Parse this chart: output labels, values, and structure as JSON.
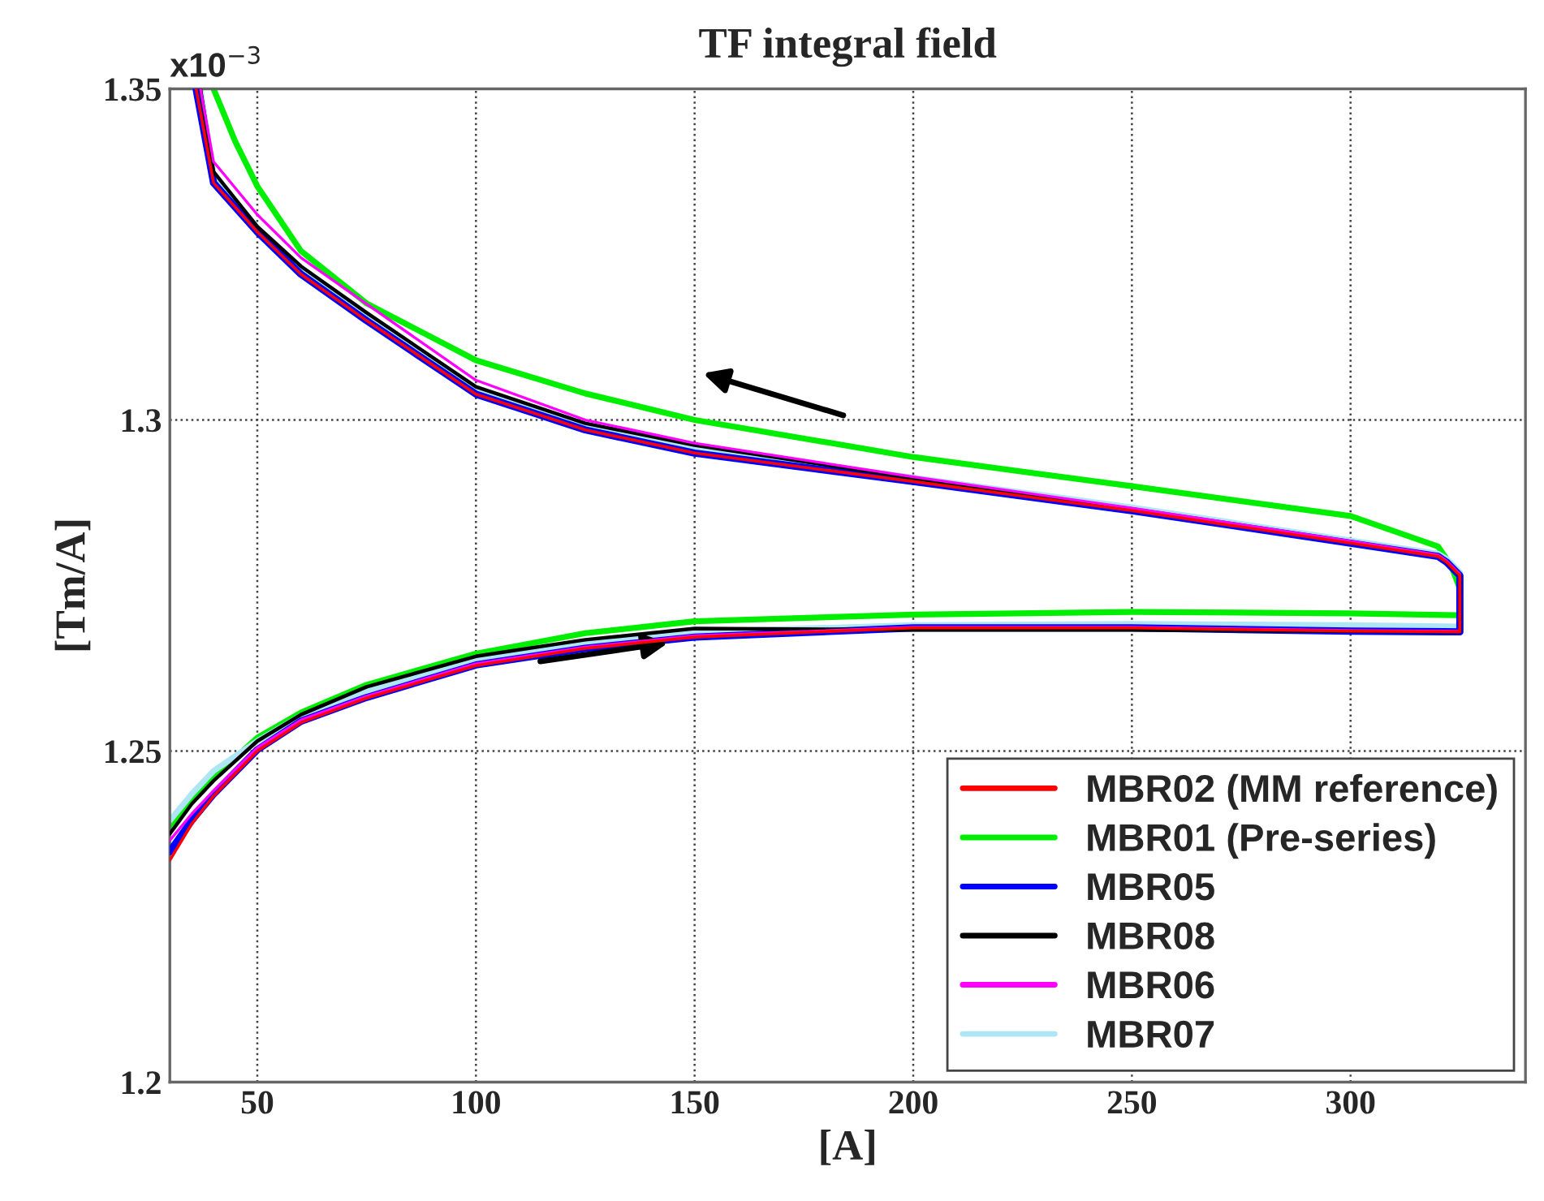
{
  "chart_data": {
    "type": "line",
    "title": "TF integral field",
    "xlabel": "[A]",
    "ylabel": "[Tm/A]",
    "annotations": [
      "x10$^{−3}$"
    ],
    "xlim": [
      30,
      340
    ],
    "xticks": [
      50,
      100,
      150,
      200,
      250,
      300
    ],
    "ylim": [
      1.2,
      1.35
    ],
    "yticks": [
      1.2,
      1.25,
      1.3,
      1.35
    ],
    "grid": true,
    "legend": "bottom right",
    "line_style": "solid",
    "marker": "none",
    "series": [
      {
        "name": "MBR02 (MM reference)",
        "color": "#ff0000",
        "x": [
          30,
          35,
          40,
          50,
          60,
          75,
          100,
          125,
          150,
          200,
          250,
          300,
          325,
          325,
          322,
          320,
          300,
          250,
          200,
          150,
          125,
          100,
          75,
          60,
          50,
          40,
          36
        ],
        "values": [
          1.2335,
          1.239,
          1.2432,
          1.25,
          1.2543,
          1.258,
          1.2629,
          1.2655,
          1.2672,
          1.2686,
          1.2686,
          1.2681,
          1.268,
          1.2765,
          1.2785,
          1.2794,
          1.2814,
          1.2863,
          1.2907,
          1.295,
          1.2985,
          1.3039,
          1.315,
          1.322,
          1.3284,
          1.3358,
          1.35
        ]
      },
      {
        "name": "MBR01 (Pre-series)",
        "color": "#00ee00",
        "x": [
          30,
          35,
          40,
          50,
          60,
          75,
          100,
          125,
          150,
          200,
          250,
          300,
          325,
          325,
          323,
          320,
          300,
          250,
          200,
          150,
          125,
          100,
          75,
          60,
          50,
          45,
          40
        ],
        "values": [
          1.2385,
          1.2425,
          1.246,
          1.252,
          1.2558,
          1.26,
          1.2647,
          1.2678,
          1.2696,
          1.2706,
          1.271,
          1.2708,
          1.2705,
          1.2745,
          1.278,
          1.2809,
          1.2855,
          1.29,
          1.2944,
          1.3,
          1.304,
          1.309,
          1.3176,
          1.3255,
          1.3353,
          1.342,
          1.35
        ]
      },
      {
        "name": "MBR05",
        "color": "#0000ff",
        "x": [
          30,
          35,
          40,
          50,
          60,
          75,
          100,
          125,
          150,
          200,
          250,
          300,
          325,
          325,
          322,
          320,
          300,
          250,
          200,
          150,
          125,
          100,
          75,
          60,
          50,
          40,
          36
        ],
        "values": [
          1.2348,
          1.2395,
          1.2435,
          1.2502,
          1.2545,
          1.2581,
          1.263,
          1.2655,
          1.2672,
          1.2686,
          1.2686,
          1.2681,
          1.268,
          1.2765,
          1.2785,
          1.2794,
          1.2814,
          1.2863,
          1.2907,
          1.295,
          1.2985,
          1.3039,
          1.315,
          1.322,
          1.3284,
          1.3358,
          1.35
        ]
      },
      {
        "name": "MBR08",
        "color": "#000000",
        "x": [
          30,
          35,
          40,
          50,
          60,
          75,
          100,
          125,
          150,
          200,
          250,
          300,
          325,
          325,
          322,
          320,
          300,
          250,
          200,
          150,
          125,
          100,
          75,
          60,
          50,
          40,
          37
        ],
        "values": [
          1.2375,
          1.242,
          1.2455,
          1.2515,
          1.2555,
          1.2597,
          1.2643,
          1.2668,
          1.2685,
          1.2683,
          1.2683,
          1.2681,
          1.268,
          1.2765,
          1.2785,
          1.2795,
          1.2815,
          1.2865,
          1.2912,
          1.2962,
          1.2995,
          1.305,
          1.3162,
          1.3232,
          1.3292,
          1.3375,
          1.35
        ]
      },
      {
        "name": "MBR06",
        "color": "#ff00ff",
        "x": [
          30,
          35,
          40,
          50,
          60,
          75,
          100,
          125,
          150,
          200,
          250,
          300,
          325,
          325,
          322,
          320,
          300,
          250,
          200,
          150,
          125,
          100,
          75,
          60,
          50,
          40,
          37
        ],
        "values": [
          1.2365,
          1.2405,
          1.244,
          1.2505,
          1.2547,
          1.2583,
          1.2632,
          1.2657,
          1.2674,
          1.2687,
          1.2687,
          1.2682,
          1.2681,
          1.2767,
          1.2787,
          1.2796,
          1.2817,
          1.2867,
          1.2914,
          1.2965,
          1.3,
          1.306,
          1.3175,
          1.3245,
          1.331,
          1.339,
          1.35
        ]
      },
      {
        "name": "MBR07",
        "color": "#aee6f5",
        "x": [
          30,
          35,
          40,
          50,
          60,
          75,
          100,
          125,
          150,
          200,
          250,
          300,
          325,
          325,
          322,
          320,
          300,
          250,
          200,
          150,
          125,
          100,
          75,
          60,
          50,
          40,
          37
        ],
        "values": [
          1.2395,
          1.2435,
          1.247,
          1.2515,
          1.2553,
          1.2592,
          1.2638,
          1.2663,
          1.268,
          1.269,
          1.2692,
          1.269,
          1.2688,
          1.277,
          1.279,
          1.2798,
          1.2818,
          1.2868,
          1.2913,
          1.2958,
          1.2992,
          1.3045,
          1.3158,
          1.323,
          1.329,
          1.337,
          1.35
        ]
      }
    ]
  }
}
